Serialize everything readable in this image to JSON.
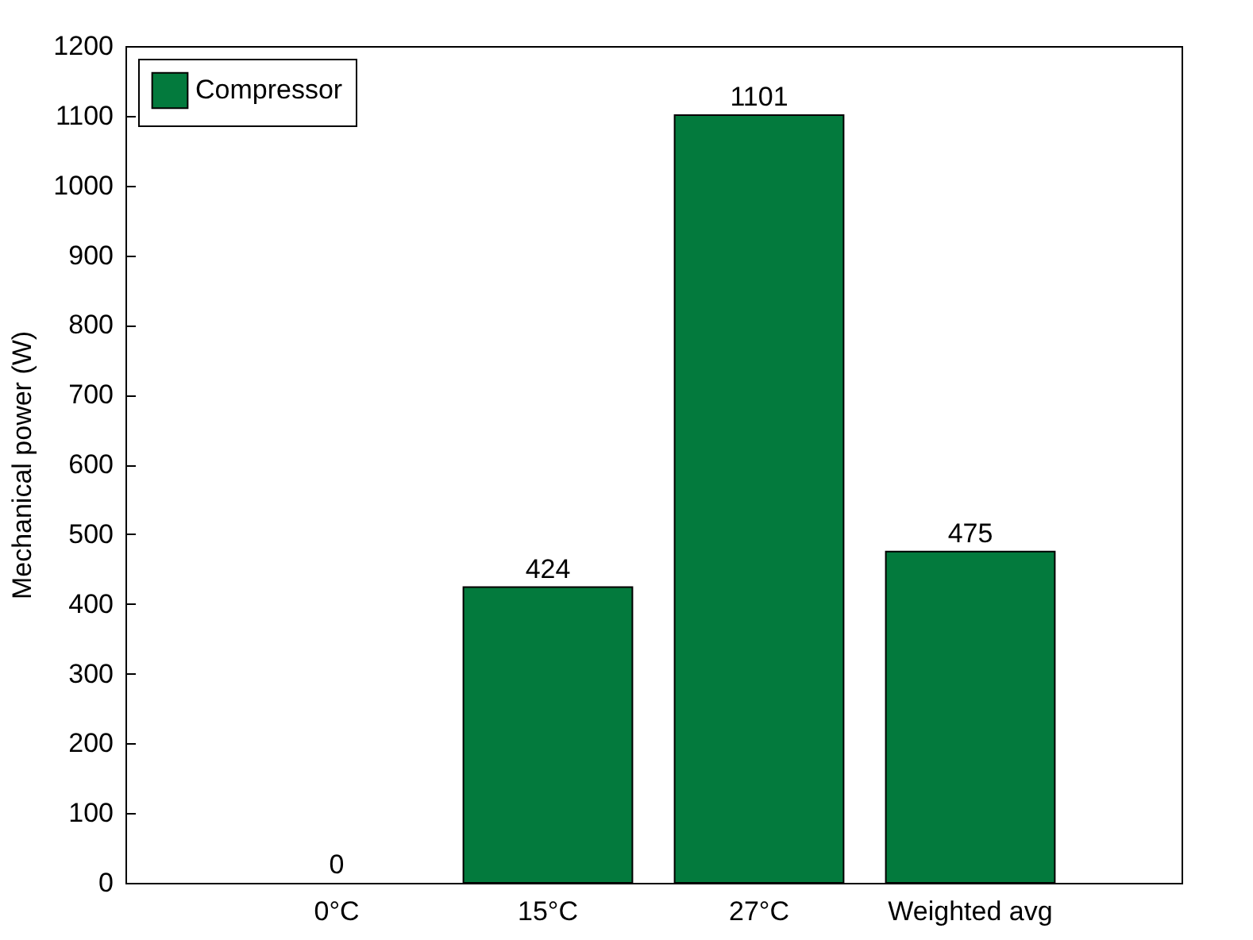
{
  "chart_data": {
    "type": "bar",
    "ylabel": "Mechanical power (W)",
    "categories": [
      "0°C",
      "15°C",
      "27°C",
      "Weighted avg"
    ],
    "series": [
      {
        "name": "Compressor",
        "color": "#037a3d",
        "values": [
          0,
          424,
          1101,
          475
        ]
      }
    ],
    "ylim": [
      0,
      1200
    ],
    "yticks": [
      0,
      100,
      200,
      300,
      400,
      500,
      600,
      700,
      800,
      900,
      1000,
      1100,
      1200
    ],
    "data_labels": true,
    "legend": "top left",
    "grid": false
  }
}
